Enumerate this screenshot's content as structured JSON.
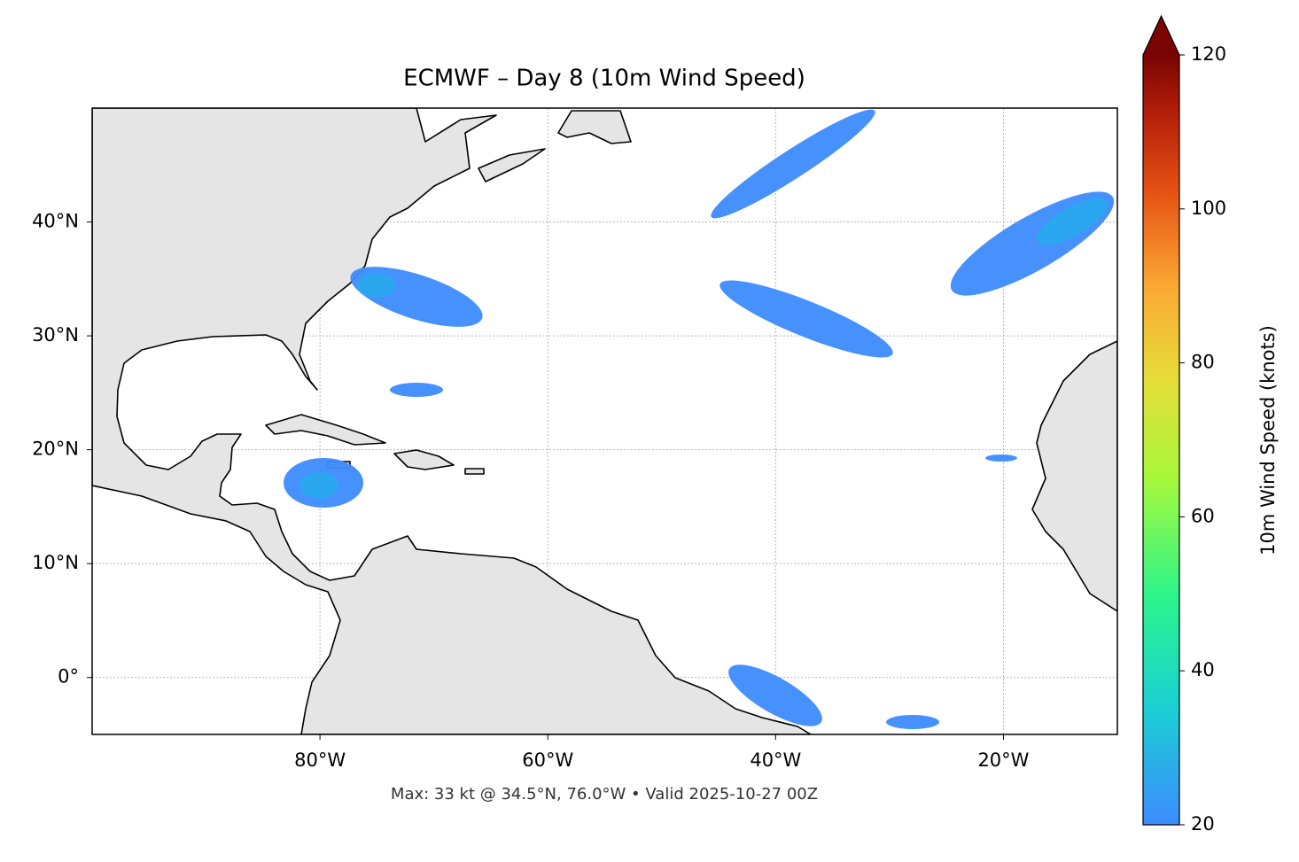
{
  "map": {
    "title": "ECMWF – Day 8 (10m Wind Speed)",
    "xlim": [
      -100,
      -10
    ],
    "ylim": [
      -5,
      50
    ],
    "xticks": [
      {
        "value": -80,
        "label": "80°W"
      },
      {
        "value": -60,
        "label": "60°W"
      },
      {
        "value": -40,
        "label": "40°W"
      },
      {
        "value": -20,
        "label": "20°W"
      }
    ],
    "yticks": [
      {
        "value": 0,
        "label": "0°"
      },
      {
        "value": 10,
        "label": "10°N"
      },
      {
        "value": 20,
        "label": "20°N"
      },
      {
        "value": 30,
        "label": "30°N"
      },
      {
        "value": 40,
        "label": "40°N"
      }
    ],
    "grid": true,
    "footnote": "Max: 33 kt @ 34.5°N, 76.0°W • Valid 2025-10-27 00Z"
  },
  "colorbar": {
    "label": "10m Wind Speed (knots)",
    "lim": [
      20,
      120
    ],
    "ticks": [
      20,
      40,
      60,
      80,
      100,
      120
    ]
  }
}
